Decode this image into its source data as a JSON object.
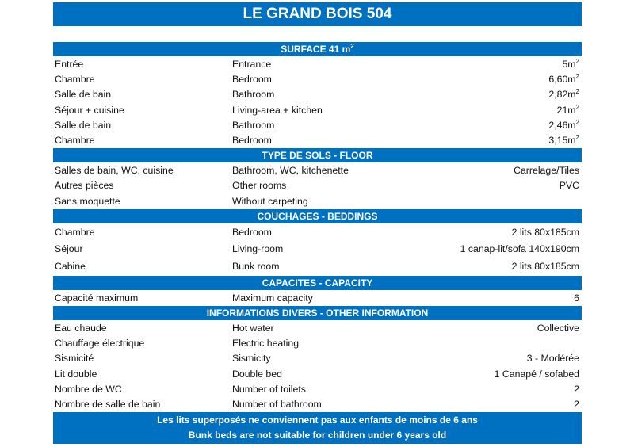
{
  "title": "LE GRAND BOIS 504",
  "accent_color": "#0070c0",
  "sections": [
    {
      "header": "SURFACE 41 m",
      "header_sup": "2",
      "tall": false,
      "rows": [
        {
          "fr": "Entrée",
          "en": "Entrance",
          "value": "5m",
          "sup": "2"
        },
        {
          "fr": "Chambre",
          "en": "Bedroom",
          "value": "6,60m",
          "sup": "2"
        },
        {
          "fr": "Salle de bain",
          "en": "Bathroom",
          "value": "2,82m",
          "sup": "2"
        },
        {
          "fr": "Séjour + cuisine",
          "en": "Living-area + kitchen",
          "value": "21m",
          "sup": "2"
        },
        {
          "fr": "Salle de bain",
          "en": "Bathroom",
          "value": "2,46m",
          "sup": "2"
        },
        {
          "fr": "Chambre",
          "en": "Bedroom",
          "value": "3,15m",
          "sup": "2"
        }
      ]
    },
    {
      "header": "TYPE DE SOLS - FLOOR",
      "tall": false,
      "rows": [
        {
          "fr": "Salles de bain, WC, cuisine",
          "en": "Bathroom, WC, kitchenette",
          "value": "Carrelage/Tiles"
        },
        {
          "fr": "Autres pièces",
          "en": "Other rooms",
          "value": "PVC"
        },
        {
          "fr": "Sans moquette",
          "en": "Without carpeting",
          "value": ""
        }
      ]
    },
    {
      "header": "COUCHAGES - BEDDINGS",
      "tall": true,
      "rows": [
        {
          "fr": "Chambre",
          "en": "Bedroom",
          "value": "2 lits 80x185cm"
        },
        {
          "fr": "Séjour",
          "en": "Living-room",
          "value": "1 canap-lit/sofa 140x190cm"
        },
        {
          "fr": "Cabine",
          "en": "Bunk room",
          "value": "2 lits 80x185cm"
        }
      ]
    },
    {
      "header": "CAPACITES - CAPACITY",
      "tall": false,
      "rows": [
        {
          "fr": "Capacité maximum",
          "en": "Maximum capacity",
          "value": "6"
        }
      ]
    },
    {
      "header": "INFORMATIONS DIVERS - OTHER INFORMATION",
      "tall": false,
      "rows": [
        {
          "fr": "Eau chaude",
          "en": "Hot water",
          "value": "Collective"
        },
        {
          "fr": "Chauffage électrique",
          "en": "Electric heating",
          "value": ""
        },
        {
          "fr": "Sismicité",
          "en": "Sismicity",
          "value": "3 - Modérée"
        },
        {
          "fr": "Lit double",
          "en": "Double bed",
          "value": "1 Canapé / sofabed"
        },
        {
          "fr": "Nombre de WC",
          "en": "Number of toilets",
          "value": "2"
        },
        {
          "fr": "Nombre de salle de bain",
          "en": "Number of bathroom",
          "value": "2"
        }
      ]
    }
  ],
  "footer": {
    "line_fr": "Les lits superposés ne conviennent pas aux enfants de moins de 6 ans",
    "line_en": "Bunk beds are not suitable for children under 6 years old"
  }
}
